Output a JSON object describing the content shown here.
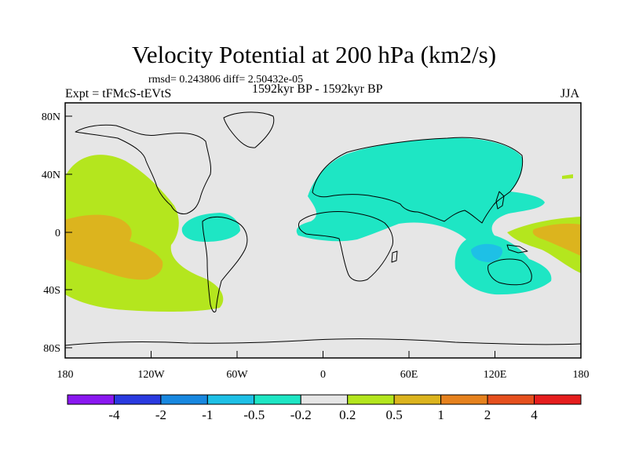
{
  "title": "Velocity Potential at 200 hPa (km2/s)",
  "stats": "rmsd= 0.243806 diff= 2.50432e-05",
  "left_label": "Expt = tFMcS-tEVtS",
  "center_label": "1592kyr BP - 1592kyr BP",
  "season": "JJA",
  "map": {
    "lat_ticks": [
      "80N",
      "40N",
      "0",
      "40S",
      "80S"
    ],
    "lon_ticks": [
      "180",
      "120W",
      "60W",
      "0",
      "60E",
      "120E",
      "180"
    ],
    "background_color": "#e6e6e6"
  },
  "colorbar": {
    "boundaries": [
      "-4",
      "-2",
      "-1",
      "-0.5",
      "-0.2",
      "0.2",
      "0.5",
      "1",
      "2",
      "4"
    ],
    "colors": [
      "#8a18f0",
      "#2a3ae0",
      "#1888e0",
      "#1ec0e6",
      "#1ee6c4",
      "#e6e6e6",
      "#b4e61e",
      "#dcb41e",
      "#e6821e",
      "#e6501e",
      "#e61e1e"
    ]
  }
}
